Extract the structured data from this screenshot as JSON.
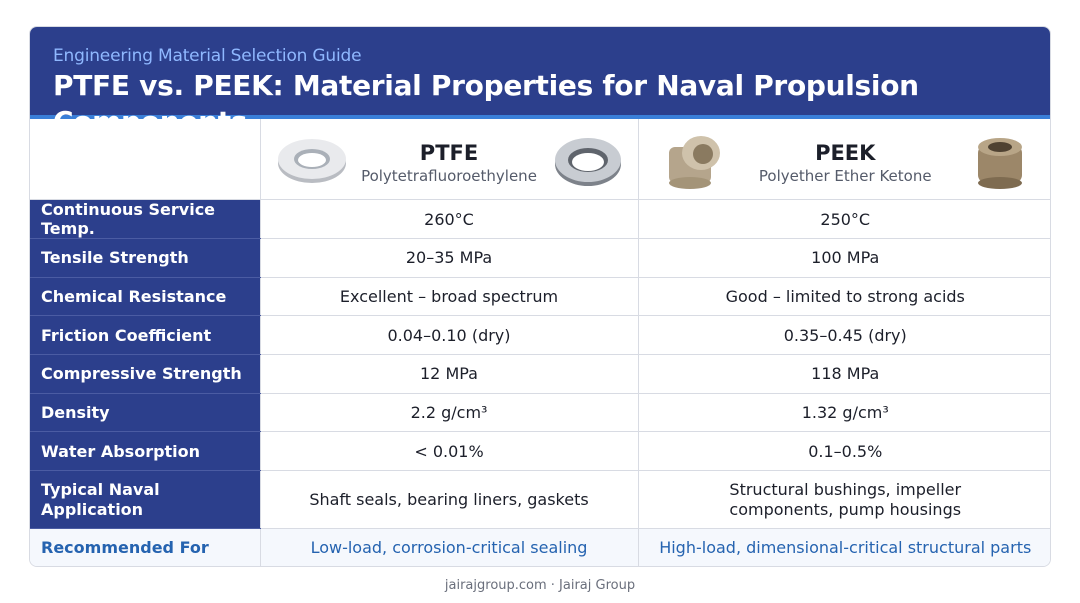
{
  "header": {
    "subtitle": "Engineering Material Selection Guide",
    "title": "PTFE vs. PEEK: Material Properties for Naval Propulsion Components"
  },
  "materials": [
    {
      "name": "PTFE",
      "full_name": "Polytetrafluoroethylene"
    },
    {
      "name": "PEEK",
      "full_name": "Polyether Ether Ketone"
    }
  ],
  "rows": [
    {
      "property": "Continuous Service Temp.",
      "ptfe": "260°C",
      "peek": "250°C"
    },
    {
      "property": "Tensile Strength",
      "ptfe": "20–35 MPa",
      "peek": "100 MPa"
    },
    {
      "property": "Chemical Resistance",
      "ptfe": "Excellent – broad spectrum",
      "peek": "Good – limited to strong acids"
    },
    {
      "property": "Friction Coefficient",
      "ptfe": "0.04–0.10 (dry)",
      "peek": "0.35–0.45 (dry)"
    },
    {
      "property": "Compressive Strength",
      "ptfe": "12 MPa",
      "peek": "118 MPa"
    },
    {
      "property": "Density",
      "ptfe": "2.2 g/cm³",
      "peek": "1.32 g/cm³"
    },
    {
      "property": "Water Absorption",
      "ptfe": "< 0.01%",
      "peek": "0.1–0.5%"
    },
    {
      "property": "Typical Naval Application",
      "ptfe": "Shaft seals, bearing liners, gaskets",
      "peek": "Structural bushings, impeller components, pump housings"
    }
  ],
  "recommended": {
    "label": "Recommended For",
    "ptfe": "Low-load, corrosion-critical sealing",
    "peek": "High-load, dimensional-critical structural parts"
  },
  "footer": "jairajgroup.com · Jairaj Group",
  "colors": {
    "header_bg": "#2c3f8c",
    "accent": "#3a7fd8",
    "subtitle": "#8fb8ff",
    "recommended": "#2563b0"
  }
}
